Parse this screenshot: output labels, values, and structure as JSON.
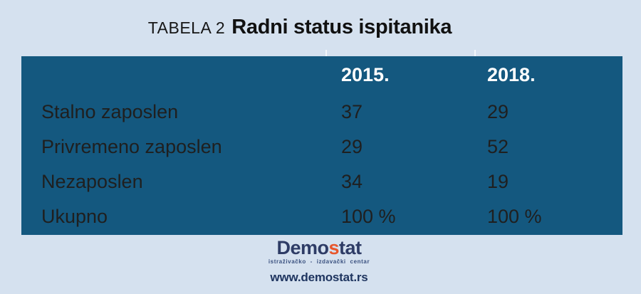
{
  "title": {
    "prefix": "TABELA 2",
    "main": "Radni status ispitanika"
  },
  "chart_data": {
    "type": "table",
    "title": "TABELA 2 Radni status ispitanika",
    "categories": [
      "Stalno zaposlen",
      "Privremeno zaposlen",
      "Nezaposlen",
      "Ukupno"
    ],
    "series": [
      {
        "name": "2015.",
        "values": [
          "37",
          "29",
          "34",
          "100 %"
        ]
      },
      {
        "name": "2018.",
        "values": [
          "29",
          "52",
          "19",
          "100 %"
        ]
      }
    ],
    "layout": "first column row labels, alternating white and light-blue rows, dark teal header and gridlines"
  },
  "colors": {
    "page_bg": "#d5e1ef",
    "header_bg": "#14587f",
    "border": "#14587f",
    "row_white": "#ffffff",
    "row_alt": "#e0e9f4",
    "header_text": "#ffffff",
    "body_text": "#1f1f1f",
    "logo_navy": "#2e3c66",
    "logo_accent": "#e8562c"
  },
  "footer": {
    "logo_part1": "Demo",
    "logo_accent": "s",
    "logo_part2": "tat",
    "tagline": "istraživačko - izdavački centar",
    "website": "www.demostat.rs"
  }
}
